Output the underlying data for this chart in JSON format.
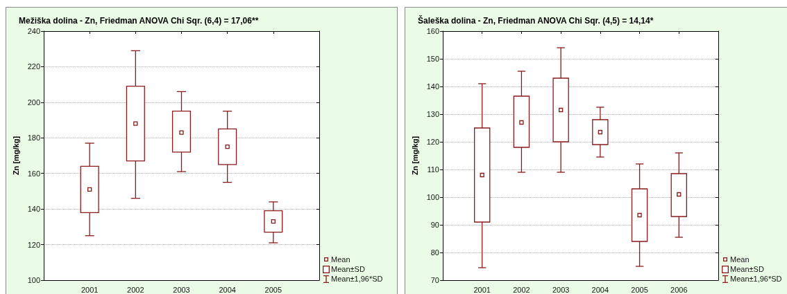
{
  "chart_data": [
    {
      "type": "box",
      "title": "Mežiška dolina - Zn, Friedman ANOVA Chi Sqr. (6,4) = 17,06**",
      "ylabel": "Zn [mg/kg]",
      "categories": [
        "2001",
        "2002",
        "2003",
        "2004",
        "2005"
      ],
      "color": "#8b1a1a",
      "marker": "square",
      "boxes": [
        {
          "low": 125,
          "q1": 138,
          "q3": 164,
          "high": 177,
          "mean": 151
        },
        {
          "low": 146,
          "q1": 167,
          "q3": 209,
          "high": 229,
          "mean": 188
        },
        {
          "low": 161,
          "q1": 172,
          "q3": 195,
          "high": 206,
          "mean": 183
        },
        {
          "low": 155,
          "q1": 165,
          "q3": 185,
          "high": 195,
          "mean": 175
        },
        {
          "low": 121,
          "q1": 127,
          "q3": 139,
          "high": 144,
          "mean": 133
        }
      ],
      "ylim": [
        100,
        240
      ],
      "yticks": [
        100,
        120,
        140,
        160,
        180,
        200,
        220,
        240
      ],
      "grid": "y",
      "annotations": [
        "Mean",
        "Mean±SD",
        "Mean±1,96*SD"
      ]
    },
    {
      "type": "box",
      "title": "Šaleška dolina - Zn, Friedman ANOVA Chi Sqr. (4,5) = 14,14*",
      "ylabel": "Zn [mg/kg]",
      "categories": [
        "2001",
        "2002",
        "2003",
        "2004",
        "2005",
        "2006"
      ],
      "color": "#8b1a1a",
      "marker": "square",
      "boxes": [
        {
          "low": 74.5,
          "q1": 91,
          "q3": 125,
          "high": 141,
          "mean": 108
        },
        {
          "low": 109,
          "q1": 118,
          "q3": 136.5,
          "high": 145.5,
          "mean": 127
        },
        {
          "low": 109,
          "q1": 120,
          "q3": 143,
          "high": 154,
          "mean": 131.5
        },
        {
          "low": 114.5,
          "q1": 119,
          "q3": 128,
          "high": 132.5,
          "mean": 123.5
        },
        {
          "low": 75,
          "q1": 84,
          "q3": 103,
          "high": 112,
          "mean": 93.5
        },
        {
          "low": 85.5,
          "q1": 93,
          "q3": 108.5,
          "high": 116,
          "mean": 101
        }
      ],
      "ylim": [
        70,
        160
      ],
      "yticks": [
        70,
        80,
        90,
        100,
        110,
        120,
        130,
        140,
        150,
        160
      ],
      "grid": "y",
      "annotations": [
        "Mean",
        "Mean±SD",
        "Mean±1,96*SD"
      ]
    }
  ]
}
